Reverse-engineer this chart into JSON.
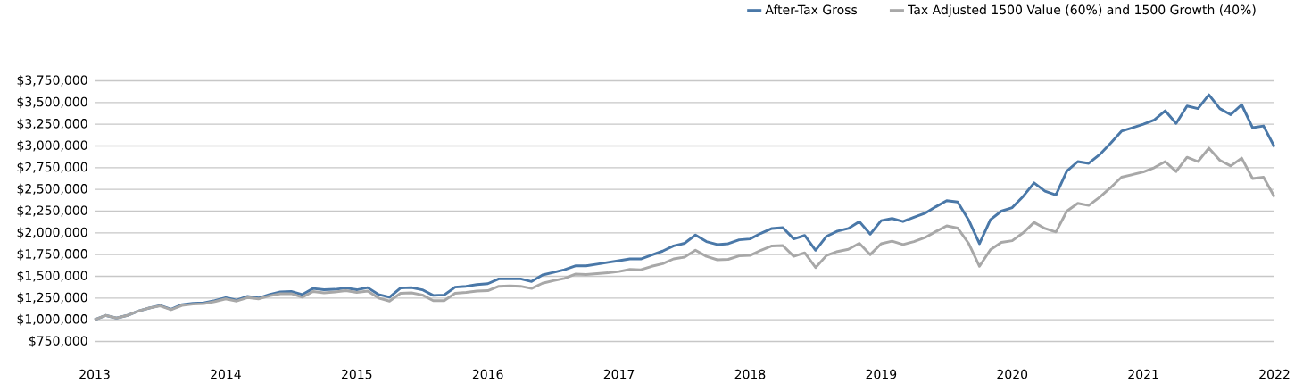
{
  "chart_data": {
    "type": "line",
    "x": [
      "2013-01",
      "2013-02",
      "2013-03",
      "2013-04",
      "2013-05",
      "2013-06",
      "2013-07",
      "2013-08",
      "2013-09",
      "2013-10",
      "2013-11",
      "2013-12",
      "2014-01",
      "2014-02",
      "2014-03",
      "2014-04",
      "2014-05",
      "2014-06",
      "2014-07",
      "2014-08",
      "2014-09",
      "2014-10",
      "2014-11",
      "2014-12",
      "2015-01",
      "2015-02",
      "2015-03",
      "2015-04",
      "2015-05",
      "2015-06",
      "2015-07",
      "2015-08",
      "2015-09",
      "2015-10",
      "2015-11",
      "2015-12",
      "2016-01",
      "2016-02",
      "2016-03",
      "2016-04",
      "2016-05",
      "2016-06",
      "2016-07",
      "2016-08",
      "2016-09",
      "2016-10",
      "2016-11",
      "2016-12",
      "2017-01",
      "2017-02",
      "2017-03",
      "2017-04",
      "2017-05",
      "2017-06",
      "2017-07",
      "2017-08",
      "2017-09",
      "2017-10",
      "2017-11",
      "2017-12",
      "2018-01",
      "2018-02",
      "2018-03",
      "2018-04",
      "2018-05",
      "2018-06",
      "2018-07",
      "2018-08",
      "2018-09",
      "2018-10",
      "2018-11",
      "2018-12",
      "2019-01",
      "2019-02",
      "2019-03",
      "2019-04",
      "2019-05",
      "2019-06",
      "2019-07",
      "2019-08",
      "2019-09",
      "2019-10",
      "2019-11",
      "2019-12",
      "2020-01",
      "2020-02",
      "2020-03",
      "2020-04",
      "2020-05",
      "2020-06",
      "2020-07",
      "2020-08",
      "2020-09",
      "2020-10",
      "2020-11",
      "2020-12",
      "2021-01",
      "2021-02",
      "2021-03",
      "2021-04",
      "2021-05",
      "2021-06",
      "2021-07",
      "2021-08",
      "2021-09",
      "2021-10",
      "2021-11",
      "2021-12",
      "2022-01"
    ],
    "series": [
      {
        "name": "After-Tax Gross",
        "color": "#4a78a8",
        "values": [
          1000000,
          1050000,
          1020000,
          1050000,
          1100000,
          1135000,
          1165000,
          1120000,
          1175000,
          1190000,
          1195000,
          1220000,
          1255000,
          1225000,
          1270000,
          1250000,
          1290000,
          1320000,
          1325000,
          1290000,
          1360000,
          1345000,
          1350000,
          1365000,
          1345000,
          1370000,
          1290000,
          1260000,
          1365000,
          1370000,
          1345000,
          1280000,
          1285000,
          1375000,
          1385000,
          1405000,
          1415000,
          1470000,
          1470000,
          1470000,
          1440000,
          1515000,
          1545000,
          1575000,
          1620000,
          1620000,
          1640000,
          1660000,
          1680000,
          1700000,
          1700000,
          1745000,
          1790000,
          1850000,
          1880000,
          1975000,
          1900000,
          1865000,
          1875000,
          1920000,
          1930000,
          1995000,
          2050000,
          2060000,
          1930000,
          1970000,
          1800000,
          1960000,
          2020000,
          2050000,
          2130000,
          1985000,
          2140000,
          2165000,
          2130000,
          2180000,
          2225000,
          2300000,
          2370000,
          2355000,
          2150000,
          1875000,
          2150000,
          2250000,
          2290000,
          2420000,
          2575000,
          2480000,
          2435000,
          2710000,
          2820000,
          2800000,
          2900000,
          3030000,
          3170000,
          3210000,
          3250000,
          3300000,
          3405000,
          3260000,
          3460000,
          3430000,
          3590000,
          3430000,
          3360000,
          3475000,
          3210000,
          3230000,
          2990000
        ]
      },
      {
        "name": "Tax Adjusted 1500 Value (60%) and 1500 Growth (40%)",
        "color": "#a8a8a8",
        "values": [
          1000000,
          1050000,
          1020000,
          1050000,
          1100000,
          1135000,
          1160000,
          1115000,
          1165000,
          1180000,
          1185000,
          1210000,
          1240000,
          1215000,
          1255000,
          1240000,
          1275000,
          1300000,
          1300000,
          1260000,
          1325000,
          1310000,
          1320000,
          1335000,
          1315000,
          1330000,
          1250000,
          1215000,
          1305000,
          1310000,
          1285000,
          1220000,
          1220000,
          1305000,
          1315000,
          1330000,
          1335000,
          1385000,
          1390000,
          1385000,
          1360000,
          1420000,
          1450000,
          1475000,
          1525000,
          1520000,
          1530000,
          1540000,
          1555000,
          1580000,
          1575000,
          1615000,
          1645000,
          1700000,
          1720000,
          1800000,
          1730000,
          1690000,
          1695000,
          1735000,
          1740000,
          1800000,
          1850000,
          1855000,
          1730000,
          1770000,
          1600000,
          1740000,
          1785000,
          1810000,
          1880000,
          1750000,
          1875000,
          1905000,
          1865000,
          1900000,
          1945000,
          2015000,
          2080000,
          2055000,
          1880000,
          1615000,
          1805000,
          1890000,
          1910000,
          2000000,
          2120000,
          2050000,
          2010000,
          2250000,
          2340000,
          2315000,
          2410000,
          2520000,
          2640000,
          2670000,
          2700000,
          2750000,
          2820000,
          2705000,
          2870000,
          2820000,
          2975000,
          2835000,
          2770000,
          2860000,
          2625000,
          2640000,
          2415000
        ]
      }
    ],
    "xlim": [
      "2013-01",
      "2022-01"
    ],
    "xticks": [
      {
        "value": "2013-01",
        "label": "2013"
      },
      {
        "value": "2014-01",
        "label": "2014"
      },
      {
        "value": "2015-01",
        "label": "2015"
      },
      {
        "value": "2016-01",
        "label": "2016"
      },
      {
        "value": "2017-01",
        "label": "2017"
      },
      {
        "value": "2018-01",
        "label": "2018"
      },
      {
        "value": "2019-01",
        "label": "2019"
      },
      {
        "value": "2020-01",
        "label": "2020"
      },
      {
        "value": "2021-01",
        "label": "2021"
      },
      {
        "value": "2022-01",
        "label": "2022"
      }
    ],
    "ylim": [
      750000,
      3750000
    ],
    "yticks": [
      {
        "value": 750000,
        "label": "$750,000"
      },
      {
        "value": 1000000,
        "label": "$1,000,000"
      },
      {
        "value": 1250000,
        "label": "$1,250,000"
      },
      {
        "value": 1500000,
        "label": "$1,500,000"
      },
      {
        "value": 1750000,
        "label": "$1,750,000"
      },
      {
        "value": 2000000,
        "label": "$2,000,000"
      },
      {
        "value": 2250000,
        "label": "$2,250,000"
      },
      {
        "value": 2500000,
        "label": "$2,500,000"
      },
      {
        "value": 2750000,
        "label": "$2,750,000"
      },
      {
        "value": 3000000,
        "label": "$3,000,000"
      },
      {
        "value": 3250000,
        "label": "$3,250,000"
      },
      {
        "value": 3500000,
        "label": "$3,500,000"
      },
      {
        "value": 3750000,
        "label": "$3,750,000"
      }
    ],
    "grid": "y",
    "legend": "top right",
    "marker": "none",
    "line_style": "solid"
  }
}
